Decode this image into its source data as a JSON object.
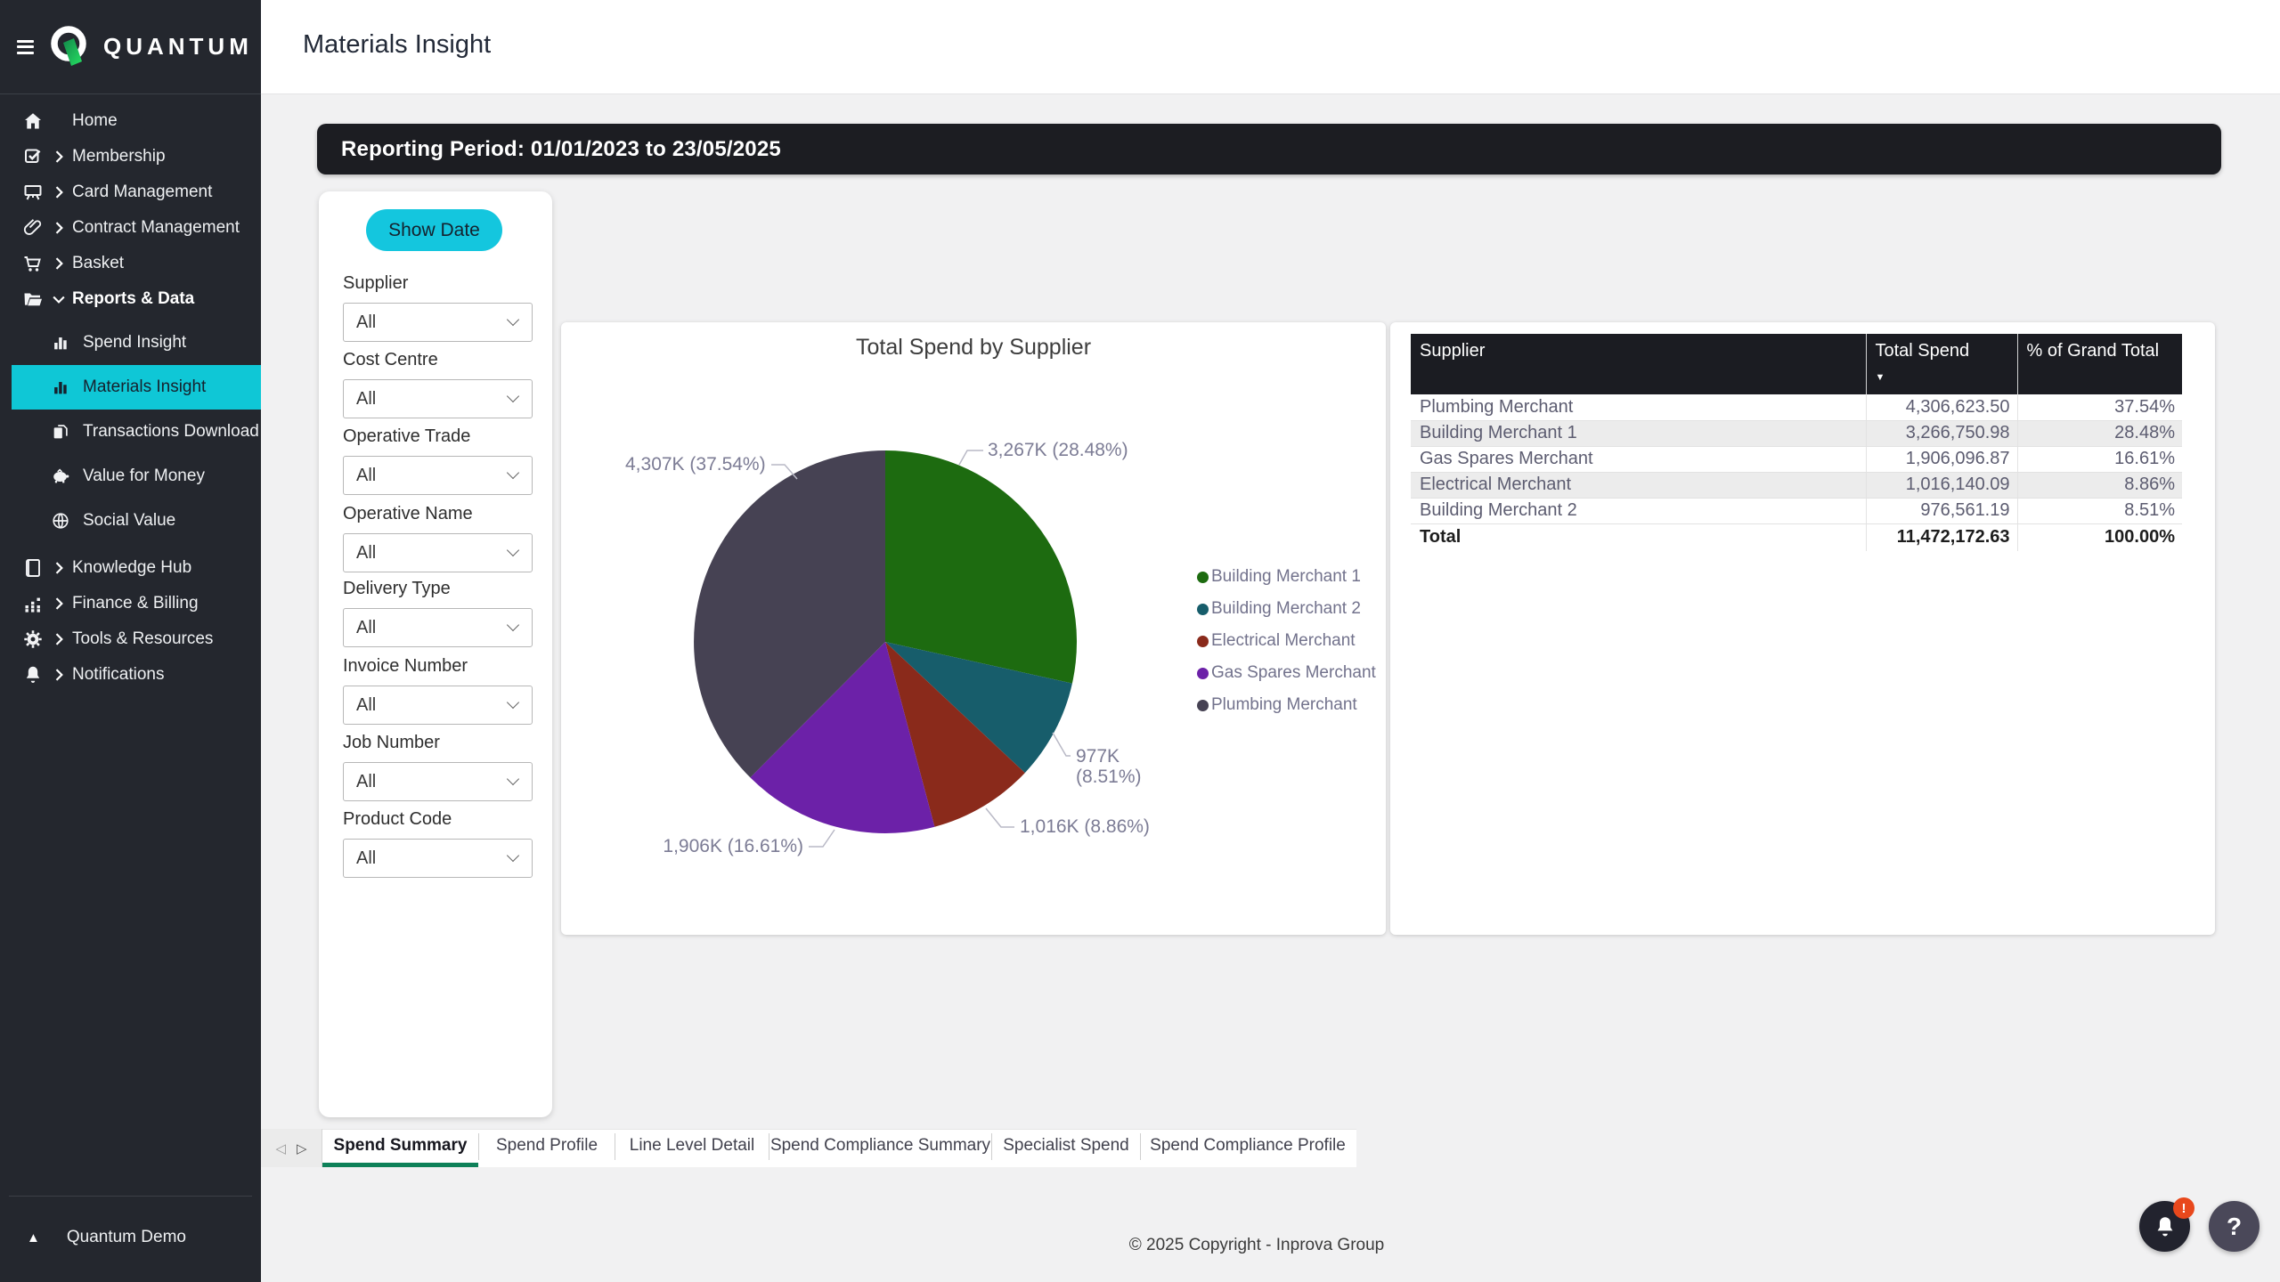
{
  "brand": {
    "name": "QUANTUM"
  },
  "sidebar": {
    "items_top": [
      {
        "label": "Home"
      },
      {
        "label": "Membership"
      },
      {
        "label": "Card Management"
      },
      {
        "label": "Contract Management"
      },
      {
        "label": "Basket"
      },
      {
        "label": "Reports & Data"
      }
    ],
    "reports_children": [
      {
        "label": "Spend Insight"
      },
      {
        "label": "Materials Insight"
      },
      {
        "label": "Transactions Download"
      },
      {
        "label": "Value for Money"
      },
      {
        "label": "Social Value"
      }
    ],
    "items_bottom": [
      {
        "label": "Knowledge Hub"
      },
      {
        "label": "Finance & Billing"
      },
      {
        "label": "Tools & Resources"
      },
      {
        "label": "Notifications"
      }
    ],
    "account": "Quantum Demo"
  },
  "header": {
    "title": "Materials Insight"
  },
  "banner": {
    "text": "Reporting Period: 01/01/2023 to 23/05/2025"
  },
  "filters": {
    "show_date": "Show Date",
    "fields": [
      {
        "label": "Supplier",
        "value": "All"
      },
      {
        "label": "Cost Centre",
        "value": "All"
      },
      {
        "label": "Operative Trade",
        "value": "All"
      },
      {
        "label": "Operative Name",
        "value": "All"
      },
      {
        "label": "Delivery Type",
        "value": "All"
      },
      {
        "label": "Invoice Number",
        "value": "All"
      },
      {
        "label": "Job Number",
        "value": "All"
      },
      {
        "label": "Product Code",
        "value": "All"
      }
    ]
  },
  "chart_data": {
    "type": "pie",
    "title": "Total Spend by Supplier",
    "legend_position": "right",
    "series": [
      {
        "name": "Building Merchant 1",
        "value": 3266750.98,
        "pct": 28.48,
        "display_label": "3,267K (28.48%)",
        "color": "#1d6b10"
      },
      {
        "name": "Building Merchant 2",
        "value": 976561.19,
        "pct": 8.51,
        "display_label": "977K",
        "display_label2": "(8.51%)",
        "color": "#175d6b"
      },
      {
        "name": "Electrical Merchant",
        "value": 1016140.09,
        "pct": 8.86,
        "display_label": "1,016K (8.86%)",
        "color": "#8a2a1b"
      },
      {
        "name": "Gas Spares Merchant",
        "value": 1906096.87,
        "pct": 16.61,
        "display_label": "1,906K (16.61%)",
        "color": "#6c21a8"
      },
      {
        "name": "Plumbing Merchant",
        "value": 4306623.5,
        "pct": 37.54,
        "display_label": "4,307K (37.54%)",
        "color": "#464253"
      }
    ]
  },
  "main_table": {
    "columns": [
      "Supplier",
      "Total Spend",
      "% of Grand Total"
    ],
    "sort": {
      "column": "Total Spend",
      "direction": "desc"
    },
    "rows": [
      [
        "Plumbing Merchant",
        "4,306,623.50",
        "37.54%"
      ],
      [
        "Building Merchant 1",
        "3,266,750.98",
        "28.48%"
      ],
      [
        "Gas Spares Merchant",
        "1,906,096.87",
        "16.61%"
      ],
      [
        "Electrical Merchant",
        "1,016,140.09",
        "8.86%"
      ],
      [
        "Building Merchant 2",
        "976,561.19",
        "8.51%"
      ]
    ],
    "total": [
      "Total",
      "11,472,172.63",
      "100.00%"
    ]
  },
  "tabs": {
    "items": [
      "Spend Summary",
      "Spend Profile",
      "Line Level Detail",
      "Spend Compliance Summary",
      "Specialist Spend",
      "Spend Compliance Profile"
    ],
    "active_index": 0
  },
  "page_footer": {
    "copyright": "© 2025 Copyright - Inprova Group"
  },
  "glyphs": {
    "prev": "◁",
    "next": "▷",
    "sort_desc": "▼",
    "collapse": "▲",
    "help": "?",
    "notification_badge": "!"
  }
}
